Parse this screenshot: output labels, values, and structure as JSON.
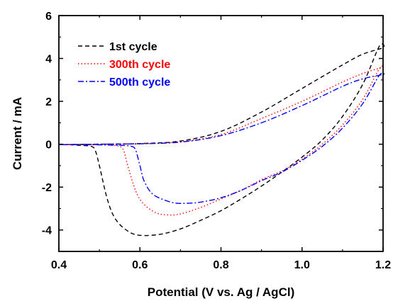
{
  "chart_data": {
    "type": "line",
    "xlabel": "Potential (V vs. Ag / AgCl)",
    "ylabel": "Current / mA",
    "xlim": [
      0.4,
      1.2
    ],
    "ylim": [
      -5,
      6
    ],
    "xticks": [
      0.4,
      0.6,
      0.8,
      1.0,
      1.2
    ],
    "xtick_labels": [
      "0.4",
      "0.6",
      "0.8",
      "1.0",
      "1.2"
    ],
    "yticks": [
      -4,
      -2,
      0,
      2,
      4,
      6
    ],
    "ytick_labels": [
      "-4",
      "-2",
      "0",
      "2",
      "4",
      "6"
    ],
    "grid": false,
    "legend_position": "top-left",
    "series": [
      {
        "name": "1st cycle",
        "color": "#000000",
        "dash": "dashed",
        "x": [
          0.4,
          0.5,
          0.6,
          0.7,
          0.8,
          0.9,
          1.0,
          1.1,
          1.15,
          1.2,
          1.19,
          1.15,
          1.1,
          1.05,
          1.0,
          0.95,
          0.9,
          0.85,
          0.8,
          0.75,
          0.7,
          0.65,
          0.6,
          0.57,
          0.54,
          0.52,
          0.5,
          0.49,
          0.48,
          0.45,
          0.42,
          0.4
        ],
        "y": [
          -0.02,
          0.0,
          0.03,
          0.15,
          0.6,
          1.5,
          2.6,
          3.7,
          4.2,
          4.5,
          4.55,
          2.8,
          1.3,
          0.2,
          -0.6,
          -1.3,
          -1.95,
          -2.55,
          -3.1,
          -3.55,
          -3.95,
          -4.2,
          -4.25,
          -4.05,
          -3.5,
          -2.6,
          -1.0,
          -0.3,
          -0.1,
          -0.05,
          -0.02,
          -0.02
        ]
      },
      {
        "name": "300th cycle",
        "color": "#ff0000",
        "dash": "dotted",
        "x": [
          0.4,
          0.5,
          0.6,
          0.7,
          0.8,
          0.9,
          1.0,
          1.1,
          1.15,
          1.2,
          1.19,
          1.15,
          1.1,
          1.05,
          1.0,
          0.95,
          0.9,
          0.85,
          0.8,
          0.75,
          0.7,
          0.67,
          0.64,
          0.61,
          0.59,
          0.57,
          0.56,
          0.55,
          0.53,
          0.5,
          0.45,
          0.4
        ],
        "y": [
          -0.02,
          0.0,
          0.02,
          0.12,
          0.45,
          1.2,
          2.0,
          2.9,
          3.3,
          3.6,
          3.5,
          2.1,
          0.9,
          0.0,
          -0.7,
          -1.25,
          -1.65,
          -2.15,
          -2.55,
          -2.95,
          -3.25,
          -3.3,
          -3.2,
          -2.8,
          -2.2,
          -1.0,
          -0.3,
          -0.1,
          -0.05,
          -0.03,
          -0.02,
          -0.02
        ]
      },
      {
        "name": "500th cycle",
        "color": "#0000ff",
        "dash": "dashdot",
        "x": [
          0.4,
          0.5,
          0.6,
          0.7,
          0.8,
          0.9,
          1.0,
          1.1,
          1.15,
          1.2,
          1.19,
          1.15,
          1.1,
          1.05,
          1.0,
          0.95,
          0.9,
          0.85,
          0.8,
          0.75,
          0.72,
          0.69,
          0.66,
          0.63,
          0.61,
          0.6,
          0.59,
          0.58,
          0.55,
          0.5,
          0.45,
          0.4
        ],
        "y": [
          -0.02,
          0.0,
          0.02,
          0.1,
          0.4,
          1.0,
          1.8,
          2.7,
          3.05,
          3.25,
          3.2,
          1.9,
          0.75,
          -0.1,
          -0.75,
          -1.3,
          -1.7,
          -2.15,
          -2.5,
          -2.7,
          -2.75,
          -2.75,
          -2.6,
          -2.3,
          -1.7,
          -1.0,
          -0.3,
          -0.1,
          -0.05,
          -0.03,
          -0.02,
          -0.02
        ]
      }
    ]
  }
}
